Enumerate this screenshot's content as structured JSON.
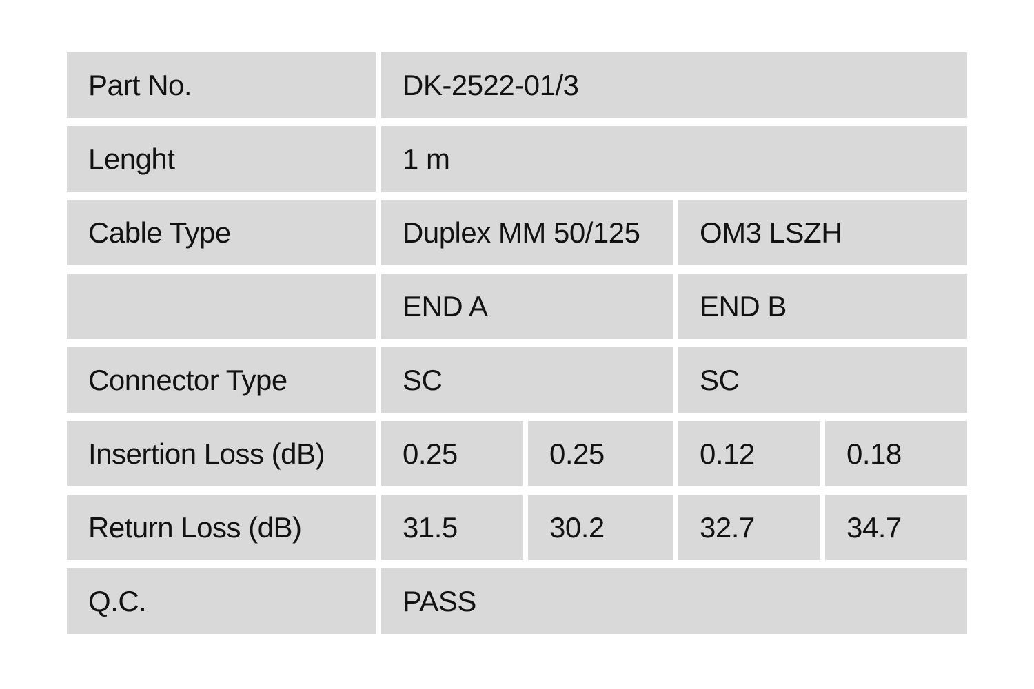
{
  "colors": {
    "cell_background": "#d9d9d9",
    "text": "#121212",
    "page_background": "#ffffff"
  },
  "table": {
    "rows": [
      {
        "label": "Part No.",
        "cells": [
          {
            "text": "DK-2522-01/3"
          }
        ]
      },
      {
        "label": "Lenght",
        "cells": [
          {
            "text": "1 m"
          }
        ]
      },
      {
        "label": "Cable Type",
        "cells": [
          {
            "text": "Duplex MM 50/125"
          },
          {
            "text": "OM3 LSZH"
          }
        ]
      },
      {
        "label": "",
        "cells": [
          {
            "text": "END A"
          },
          {
            "text": "END B"
          }
        ]
      },
      {
        "label": "Connector Type",
        "cells": [
          {
            "text": "SC"
          },
          {
            "text": "SC"
          }
        ]
      },
      {
        "label": "Insertion Loss (dB)",
        "cells": [
          {
            "text": "0.25"
          },
          {
            "text": "0.25"
          },
          {
            "text": "0.12"
          },
          {
            "text": "0.18"
          }
        ]
      },
      {
        "label": "Return Loss (dB)",
        "cells": [
          {
            "text": "31.5"
          },
          {
            "text": "30.2"
          },
          {
            "text": "32.7"
          },
          {
            "text": "34.7"
          }
        ]
      },
      {
        "label": "Q.C.",
        "cells": [
          {
            "text": "PASS"
          }
        ]
      }
    ]
  }
}
